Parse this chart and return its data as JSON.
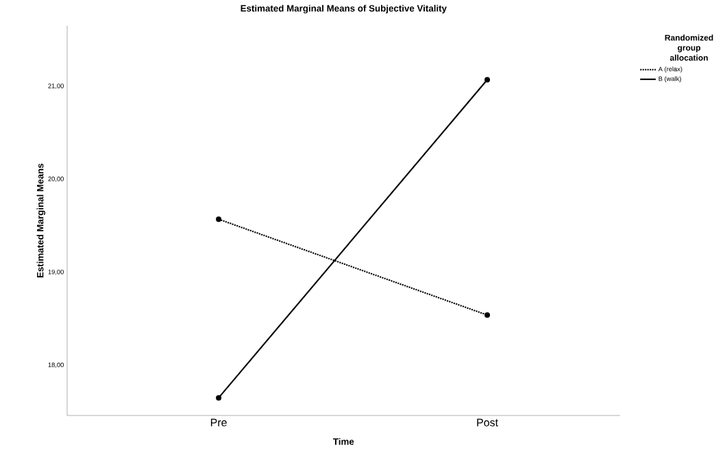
{
  "chart_data": {
    "type": "line",
    "title": "Estimated Marginal Means of Subjective Vitality",
    "xlabel": "Time",
    "ylabel": "Estimated Marginal Means",
    "legend_title": "Randomized group allocation",
    "legend": "top right",
    "marker": "circle",
    "categories": [
      "Pre",
      "Post"
    ],
    "ylim": [
      17.46,
      21.65
    ],
    "yticks": [
      {
        "value": 18,
        "label": "18,00"
      },
      {
        "value": 19,
        "label": "19,00"
      },
      {
        "value": 20,
        "label": "20,00"
      },
      {
        "value": 21,
        "label": "21,00"
      }
    ],
    "series": [
      {
        "name": "A (relax)",
        "color": "#000000",
        "line_style": "dotted",
        "values": [
          19.57,
          18.54
        ]
      },
      {
        "name": "B (walk)",
        "color": "#000000",
        "line_style": "solid",
        "values": [
          17.65,
          21.07
        ]
      }
    ]
  }
}
